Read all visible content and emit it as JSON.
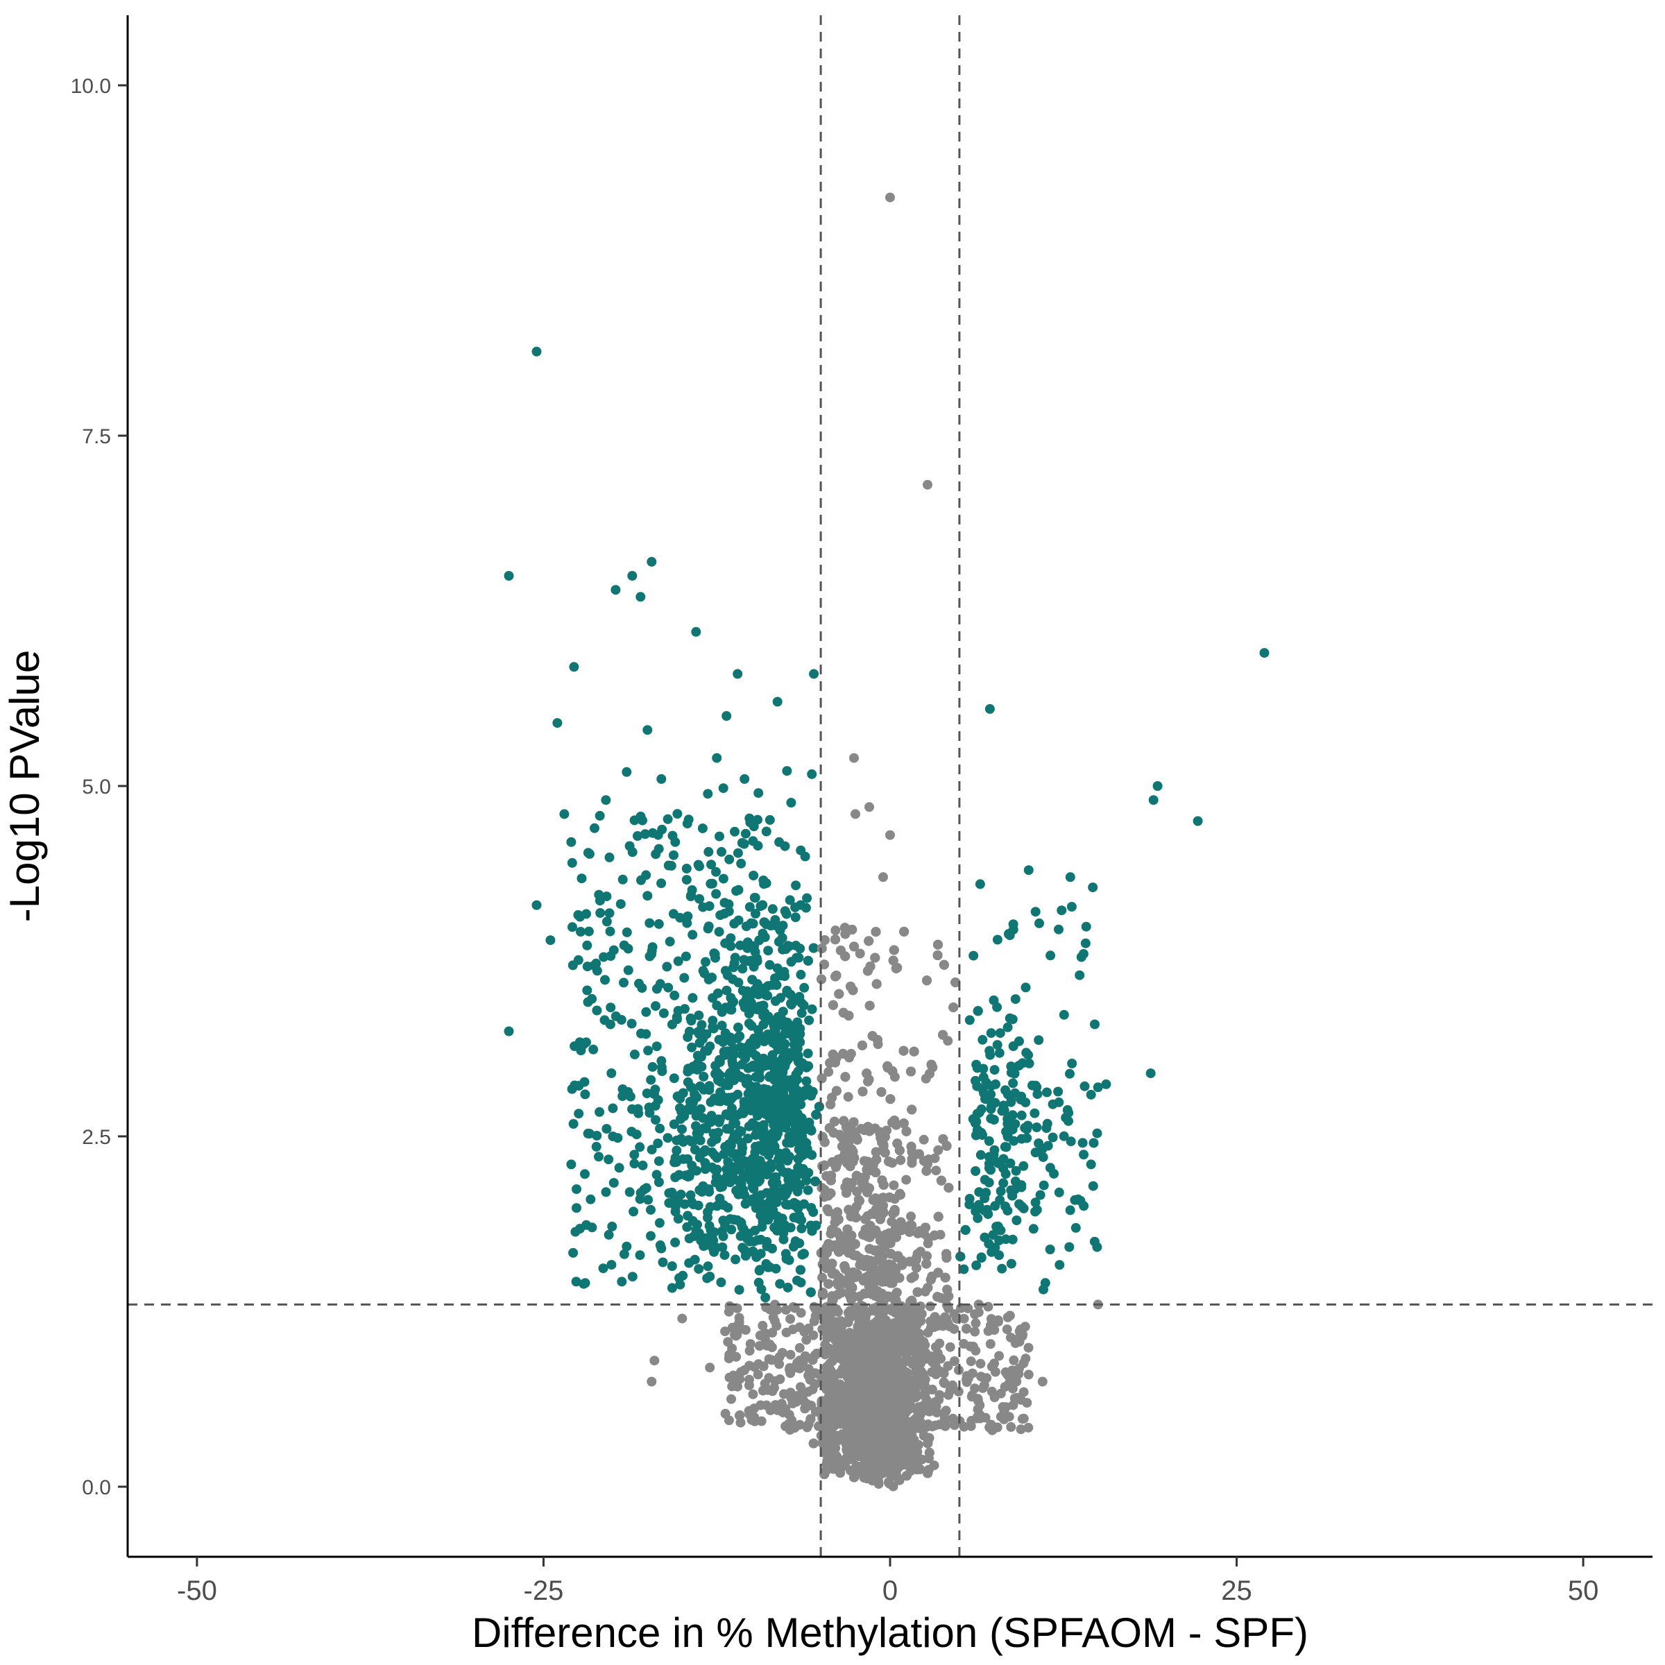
{
  "chart_data": {
    "type": "scatter",
    "title": "",
    "xlabel": "Difference in % Methylation (SPFAOM - SPF)",
    "ylabel": "-Log10 PValue",
    "xlim": [
      -55,
      55
    ],
    "ylim": [
      -0.5,
      10.5
    ],
    "x_ticks": [
      -50,
      -25,
      0,
      25,
      50
    ],
    "x_tick_labels": [
      "-50",
      "-25",
      "0",
      "25",
      "50"
    ],
    "y_ticks": [
      0,
      2.5,
      5,
      7.5,
      10
    ],
    "y_tick_labels": [
      "0.0",
      "2.5",
      "5.0",
      "7.5",
      "10.0"
    ],
    "grid": false,
    "legend": "none",
    "threshold_lines": {
      "x": [
        -5,
        5
      ],
      "y": [
        1.3
      ],
      "style": "dashed",
      "color": "#555555"
    },
    "colors": {
      "significant": "#0f7673",
      "not_significant": "#888888"
    },
    "series": [
      {
        "group": "significant",
        "note_points": "labeled outliers read from the plot",
        "x": [
          -27.5,
          -25.5,
          -24,
          -23.5,
          -22.8,
          -19.8,
          -18.6,
          -18,
          -17.2,
          -14,
          -11.8,
          -11,
          -27.5,
          -25.5,
          -24.5,
          -23,
          -20.5,
          -19,
          -17.5,
          -16.5,
          -15.5,
          -12.5,
          -10.5,
          -9.5,
          -8,
          -6,
          -5.5,
          -21.5,
          -23,
          -22,
          -20,
          -16.5,
          -13,
          -9,
          7.2,
          27,
          19,
          19.3,
          22.2,
          10,
          13,
          15,
          18.8,
          14.5,
          12.2,
          9.5,
          6.5
        ],
        "y": [
          6.5,
          8.1,
          5.45,
          4.8,
          5.85,
          6.4,
          6.5,
          6.35,
          6.6,
          6.1,
          5.5,
          5.8,
          3.25,
          4.15,
          3.9,
          4.6,
          4.9,
          5.1,
          5.4,
          5.05,
          4.6,
          5.2,
          5.05,
          4.95,
          4.6,
          4.2,
          5.8,
          1.85,
          2.3,
          2.8,
          2.5,
          1.7,
          1.5,
          1.35,
          5.55,
          5.95,
          4.9,
          5.0,
          4.75,
          4.4,
          4.35,
          2.85,
          2.95,
          2.3,
          2.1,
          2.0,
          4.3
        ]
      },
      {
        "group": "not_significant",
        "note_points": "labeled outliers read from the plot",
        "x": [
          0,
          2.7,
          -2.6,
          0,
          -1.5,
          -2.5,
          -0.5,
          15,
          11,
          -17,
          -17.2,
          -15,
          -11,
          -13,
          8,
          10,
          6
        ],
        "y": [
          9.2,
          7.15,
          5.2,
          4.65,
          4.85,
          4.8,
          4.35,
          1.3,
          0.75,
          0.9,
          0.75,
          1.2,
          1.15,
          0.85,
          0.5,
          0.8,
          1.0
        ]
      }
    ]
  }
}
